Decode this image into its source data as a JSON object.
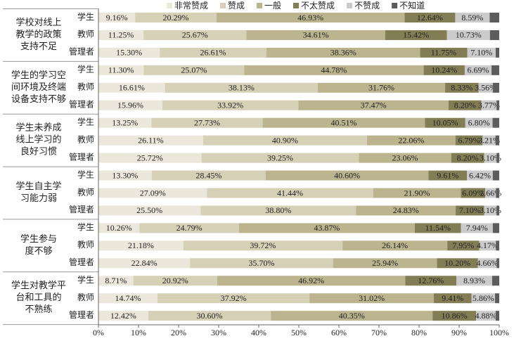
{
  "chart_data": {
    "type": "stacked-bar-horizontal",
    "xlim": [
      0,
      100
    ],
    "xticks": [
      {
        "value": 0,
        "label": "0%"
      },
      {
        "value": 10,
        "label": "10%"
      },
      {
        "value": 20,
        "label": "20%"
      },
      {
        "value": 30,
        "label": "30%"
      },
      {
        "value": 40,
        "label": "40%"
      },
      {
        "value": 50,
        "label": "50%"
      },
      {
        "value": 60,
        "label": "60%"
      },
      {
        "value": 70,
        "label": "70%"
      },
      {
        "value": 80,
        "label": "80%"
      },
      {
        "value": 90,
        "label": "90%"
      },
      {
        "value": 100,
        "label": "100%"
      }
    ],
    "groups": [
      {
        "label": [
          "学校对线上",
          "教学的政策",
          "支持不足"
        ],
        "categories": [
          "学生",
          "教师",
          "管理者"
        ]
      },
      {
        "label": [
          "学生的学习空",
          "间环境及终端",
          "设备支持不够"
        ],
        "categories": [
          "学生",
          "教师",
          "管理者"
        ]
      },
      {
        "label": [
          "学生未养成",
          "线上学习的",
          "良好习惯"
        ],
        "categories": [
          "学生",
          "教师",
          "管理者"
        ]
      },
      {
        "label": [
          "学生自主学",
          "习能力弱"
        ],
        "categories": [
          "学生",
          "教师",
          "管理者"
        ]
      },
      {
        "label": [
          "学生参与",
          "度不够"
        ],
        "categories": [
          "学生",
          "教师",
          "管理者"
        ]
      },
      {
        "label": [
          "学生对教学平",
          "台和工具的",
          "不熟练"
        ],
        "categories": [
          "学生",
          "教师",
          "管理者"
        ]
      }
    ],
    "series": [
      {
        "name": "非常赞成",
        "color": "#ebe7da",
        "values": [
          9.16,
          11.25,
          15.3,
          11.3,
          16.61,
          15.96,
          13.25,
          26.11,
          25.72,
          13.3,
          27.09,
          25.5,
          10.26,
          21.18,
          22.84,
          8.71,
          14.74,
          12.42
        ],
        "value_labels": [
          "9.16%",
          "11.25%",
          "15.30%",
          "11.30%",
          "16.61%",
          "15.96%",
          "13.25%",
          "26.11%",
          "25.72%",
          "13.30%",
          "27.09%",
          "25.50%",
          "10.26%",
          "21.18%",
          "22.84%",
          "8.71%",
          "14.74%",
          "12.42%"
        ]
      },
      {
        "name": "赞成",
        "color": "#d6d0b6",
        "values": [
          20.29,
          25.67,
          26.61,
          25.07,
          38.13,
          33.92,
          27.73,
          40.9,
          39.25,
          28.45,
          41.44,
          38.8,
          24.79,
          39.72,
          35.7,
          20.92,
          37.92,
          30.6
        ],
        "value_labels": [
          "20.29%",
          "25.67%",
          "26.61%",
          "25.07%",
          "38.13%",
          "33.92%",
          "27.73%",
          "40.90%",
          "39.25%",
          "28.45%",
          "41.44%",
          "38.80%",
          "24.79%",
          "39.72%",
          "35.70%",
          "20.92%",
          "37.92%",
          "30.60%"
        ]
      },
      {
        "name": "一般",
        "color": "#bbb48f",
        "values": [
          46.93,
          34.61,
          38.36,
          44.78,
          31.76,
          37.47,
          40.51,
          22.06,
          23.06,
          40.6,
          21.9,
          24.83,
          43.87,
          26.14,
          25.94,
          46.92,
          31.02,
          40.35
        ],
        "value_labels": [
          "46.93%",
          "34.61%",
          "38.36%",
          "44.78%",
          "31.76%",
          "37.47%",
          "40.51%",
          "22.06%",
          "23.06%",
          "40.60%",
          "21.90%",
          "24.83%",
          "43.87%",
          "26.14%",
          "25.94%",
          "46.92%",
          "31.02%",
          "40.35%"
        ]
      },
      {
        "name": "不太赞成",
        "color": "#827d55",
        "values": [
          12.64,
          15.42,
          11.75,
          10.24,
          8.33,
          8.2,
          10.05,
          6.79,
          8.2,
          9.61,
          6.09,
          7.1,
          11.54,
          7.95,
          10.2,
          12.76,
          9.41,
          10.86
        ],
        "value_labels": [
          "12.64%",
          "15.42%",
          "11.75%",
          "10.24%",
          "8.33%",
          "8.20%",
          "10.05%",
          "6.79%",
          "8.20%",
          "9.61%",
          "6.09%",
          "7.10%",
          "11.54%",
          "7.95%",
          "10.20%",
          "12.76%",
          "9.41%",
          "10.86%"
        ]
      },
      {
        "name": "不赞成",
        "color": "#cbcbcb",
        "values": [
          8.59,
          10.73,
          7.1,
          6.69,
          3.56,
          3.77,
          6.8,
          3.21,
          3.1,
          6.42,
          2.66,
          3.1,
          7.94,
          4.17,
          4.66,
          8.93,
          5.86,
          4.88
        ],
        "value_labels": [
          "8.59%",
          "10.73%",
          "7.10%",
          "6.69%",
          "3.56%",
          "3.77%",
          "6.80%",
          "3.21%",
          "3.10%",
          "6.42%",
          "2.66%",
          "3.10%",
          "7.94%",
          "4.17%",
          "4.66%",
          "8.93%",
          "5.86%",
          "4.88%"
        ]
      },
      {
        "name": "不知道",
        "color": "#5c5c5c",
        "values": [
          2.39,
          2.32,
          0.88,
          1.92,
          1.61,
          0.68,
          1.66,
          0.93,
          0.67,
          1.62,
          0.82,
          0.67,
          1.6,
          0.84,
          0.66,
          1.76,
          1.05,
          0.89
        ]
      }
    ]
  }
}
